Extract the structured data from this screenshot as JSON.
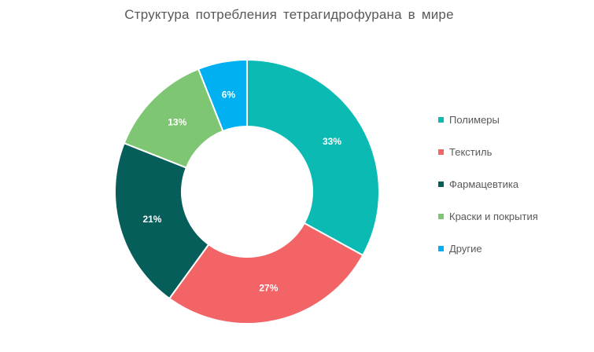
{
  "chart_data": {
    "type": "pie",
    "variant": "donut",
    "title": "Структура потребления тетрагидрофурана в мире",
    "categories": [
      "Полимеры",
      "Текстиль",
      "Фармацевтика",
      "Краски и покрытия",
      "Другие"
    ],
    "values": [
      33,
      27,
      21,
      13,
      6
    ],
    "value_labels": [
      "33%",
      "27%",
      "21%",
      "13%",
      "6%"
    ],
    "unit": "%",
    "colors": [
      "#0bbab3",
      "#f26466",
      "#055e5a",
      "#7ec673",
      "#00b0f0"
    ],
    "legend_position": "right",
    "start_angle": "12 o'clock",
    "direction": "clockwise"
  }
}
